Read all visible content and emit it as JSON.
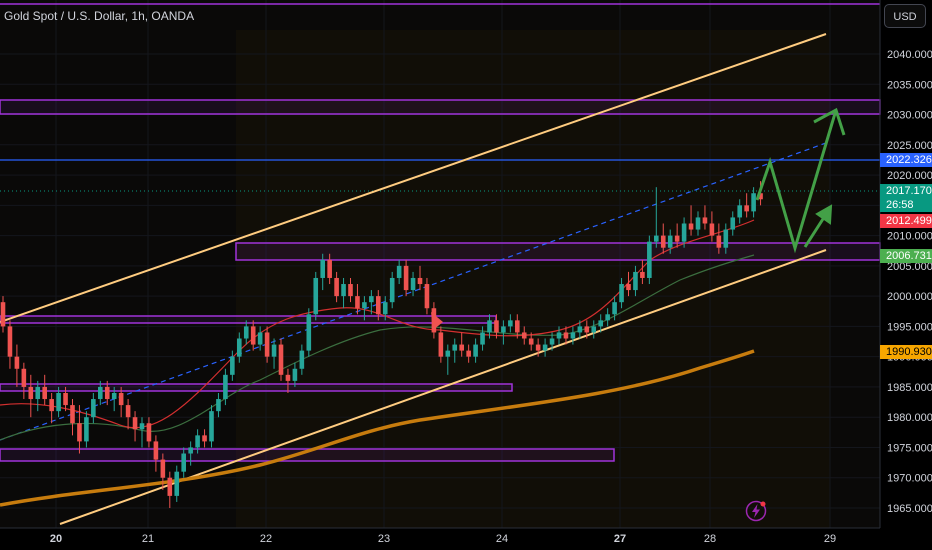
{
  "header": {
    "symbol_title": "Gold Spot / U.S. Dollar, 1h, OANDA",
    "currency_button": "USD"
  },
  "price_badges": [
    {
      "name": "blue-level-badge",
      "label": "2022.326",
      "bg": "#2962ff"
    },
    {
      "name": "last-price-badge",
      "label": "2017.170",
      "sub": "26:58",
      "bg": "#089981"
    },
    {
      "name": "red-ma-badge",
      "label": "2012.499",
      "bg": "#f23645"
    },
    {
      "name": "green-ma-badge",
      "label": "2006.731",
      "bg": "#4caf50"
    },
    {
      "name": "orange-ma-badge",
      "label": "1990.930",
      "bg": "#f7a600",
      "text_color": "#000000"
    }
  ],
  "chart_data": {
    "type": "candlestick",
    "title": "Gold Spot / U.S. Dollar, 1h, OANDA",
    "y_axis": {
      "ylim": [
        1962,
        2047
      ],
      "ticks": [
        "2040.000",
        "2035.000",
        "2030.000",
        "2025.000",
        "2020.000",
        "2015.000",
        "2010.000",
        "2005.000",
        "2000.000",
        "1995.000",
        "1990.000",
        "1985.000",
        "1980.000",
        "1975.000",
        "1970.000",
        "1965.000"
      ]
    },
    "x_axis": {
      "ticks": [
        {
          "label": "20",
          "bold": true
        },
        {
          "label": "21",
          "bold": false
        },
        {
          "label": "22",
          "bold": false
        },
        {
          "label": "23",
          "bold": false
        },
        {
          "label": "24",
          "bold": false
        },
        {
          "label": "27",
          "bold": true
        },
        {
          "label": "28",
          "bold": false
        },
        {
          "label": "29",
          "bold": false
        }
      ]
    },
    "candles_ohlc": [
      [
        1999,
        2000,
        1994,
        1995
      ],
      [
        1995,
        1996,
        1988,
        1990
      ],
      [
        1990,
        1992,
        1985,
        1988
      ],
      [
        1988,
        1989,
        1983,
        1985
      ],
      [
        1985,
        1987,
        1980,
        1983
      ],
      [
        1983,
        1986,
        1981,
        1985
      ],
      [
        1985,
        1987,
        1982,
        1983
      ],
      [
        1983,
        1984,
        1979,
        1981
      ],
      [
        1981,
        1985,
        1980,
        1984
      ],
      [
        1984,
        1985,
        1981,
        1982
      ],
      [
        1982,
        1983,
        1977,
        1979
      ],
      [
        1979,
        1982,
        1974,
        1976
      ],
      [
        1976,
        1981,
        1975,
        1980
      ],
      [
        1980,
        1984,
        1979,
        1983
      ],
      [
        1983,
        1986,
        1982,
        1985
      ],
      [
        1985,
        1986,
        1982,
        1983
      ],
      [
        1983,
        1985,
        1981,
        1984
      ],
      [
        1984,
        1985,
        1980,
        1982
      ],
      [
        1982,
        1983,
        1978,
        1980
      ],
      [
        1980,
        1981,
        1976,
        1978
      ],
      [
        1978,
        1980,
        1975,
        1979
      ],
      [
        1979,
        1980,
        1975,
        1976
      ],
      [
        1976,
        1977,
        1971,
        1973
      ],
      [
        1973,
        1974,
        1968,
        1970
      ],
      [
        1970,
        1971,
        1965,
        1967
      ],
      [
        1967,
        1972,
        1966,
        1971
      ],
      [
        1971,
        1975,
        1970,
        1974
      ],
      [
        1974,
        1976,
        1972,
        1975
      ],
      [
        1975,
        1978,
        1974,
        1977
      ],
      [
        1977,
        1978,
        1975,
        1976
      ],
      [
        1976,
        1982,
        1975,
        1981
      ],
      [
        1981,
        1984,
        1980,
        1983
      ],
      [
        1983,
        1988,
        1982,
        1987
      ],
      [
        1987,
        1991,
        1986,
        1990
      ],
      [
        1990,
        1994,
        1989,
        1993
      ],
      [
        1993,
        1996,
        1992,
        1995
      ],
      [
        1995,
        1996,
        1991,
        1992
      ],
      [
        1992,
        1995,
        1991,
        1994
      ],
      [
        1994,
        1995,
        1989,
        1990
      ],
      [
        1990,
        1993,
        1988,
        1992
      ],
      [
        1992,
        1993,
        1986,
        1987
      ],
      [
        1987,
        1988,
        1984,
        1986
      ],
      [
        1986,
        1989,
        1985,
        1988
      ],
      [
        1988,
        1992,
        1987,
        1991
      ],
      [
        1991,
        1998,
        1990,
        1997
      ],
      [
        1997,
        2004,
        1996,
        2003
      ],
      [
        2003,
        2007,
        2001,
        2006
      ],
      [
        2006,
        2007,
        2002,
        2003
      ],
      [
        2003,
        2004,
        1999,
        2000
      ],
      [
        2000,
        2003,
        1998,
        2002
      ],
      [
        2002,
        2003,
        1999,
        2000
      ],
      [
        2000,
        2002,
        1997,
        1998
      ],
      [
        1998,
        2000,
        1996,
        1999
      ],
      [
        1999,
        2001,
        1997,
        2000
      ],
      [
        2000,
        2001,
        1996,
        1997
      ],
      [
        1997,
        2000,
        1996,
        1999
      ],
      [
        1999,
        2004,
        1998,
        2003
      ],
      [
        2003,
        2006,
        2002,
        2005
      ],
      [
        2005,
        2006,
        2000,
        2001
      ],
      [
        2001,
        2004,
        2000,
        2003
      ],
      [
        2003,
        2005,
        2001,
        2002
      ],
      [
        2002,
        2003,
        1997,
        1998
      ],
      [
        1998,
        1999,
        1993,
        1994
      ],
      [
        1994,
        1995,
        1989,
        1990
      ],
      [
        1990,
        1992,
        1987,
        1991
      ],
      [
        1991,
        1993,
        1989,
        1992
      ],
      [
        1992,
        1994,
        1990,
        1991
      ],
      [
        1991,
        1992,
        1989,
        1990
      ],
      [
        1990,
        1993,
        1989,
        1992
      ],
      [
        1992,
        1995,
        1991,
        1994
      ],
      [
        1994,
        1997,
        1993,
        1996
      ],
      [
        1996,
        1997,
        1993,
        1994
      ],
      [
        1994,
        1996,
        1992,
        1995
      ],
      [
        1995,
        1997,
        1994,
        1996
      ],
      [
        1996,
        1997,
        1993,
        1994
      ],
      [
        1994,
        1995,
        1992,
        1993
      ],
      [
        1993,
        1994,
        1991,
        1992
      ],
      [
        1992,
        1993,
        1990,
        1991
      ],
      [
        1991,
        1993,
        1990,
        1992
      ],
      [
        1992,
        1994,
        1991,
        1993
      ],
      [
        1993,
        1995,
        1992,
        1994
      ],
      [
        1994,
        1995,
        1992,
        1993
      ],
      [
        1993,
        1995,
        1992,
        1994
      ],
      [
        1994,
        1996,
        1993,
        1995
      ],
      [
        1995,
        1996,
        1993,
        1994
      ],
      [
        1994,
        1996,
        1993,
        1995
      ],
      [
        1995,
        1997,
        1994,
        1996
      ],
      [
        1996,
        1998,
        1995,
        1997
      ],
      [
        1997,
        2000,
        1996,
        1999
      ],
      [
        1999,
        2003,
        1998,
        2002
      ],
      [
        2002,
        2004,
        2000,
        2001
      ],
      [
        2001,
        2005,
        2000,
        2004
      ],
      [
        2004,
        2006,
        2002,
        2003
      ],
      [
        2003,
        2010,
        2002,
        2009
      ],
      [
        2009,
        2018,
        2008,
        2010
      ],
      [
        2010,
        2012,
        2007,
        2008
      ],
      [
        2008,
        2011,
        2007,
        2010
      ],
      [
        2010,
        2012,
        2008,
        2009
      ],
      [
        2009,
        2013,
        2008,
        2012
      ],
      [
        2012,
        2015,
        2010,
        2011
      ],
      [
        2011,
        2014,
        2010,
        2013
      ],
      [
        2013,
        2015,
        2011,
        2012
      ],
      [
        2012,
        2014,
        2009,
        2010
      ],
      [
        2010,
        2012,
        2007,
        2008
      ],
      [
        2008,
        2012,
        2007,
        2011
      ],
      [
        2011,
        2014,
        2010,
        2013
      ],
      [
        2013,
        2016,
        2012,
        2015
      ],
      [
        2015,
        2017,
        2013,
        2014
      ],
      [
        2014,
        2018,
        2013,
        2017
      ],
      [
        2017,
        2019,
        2015,
        2016
      ]
    ]
  }
}
